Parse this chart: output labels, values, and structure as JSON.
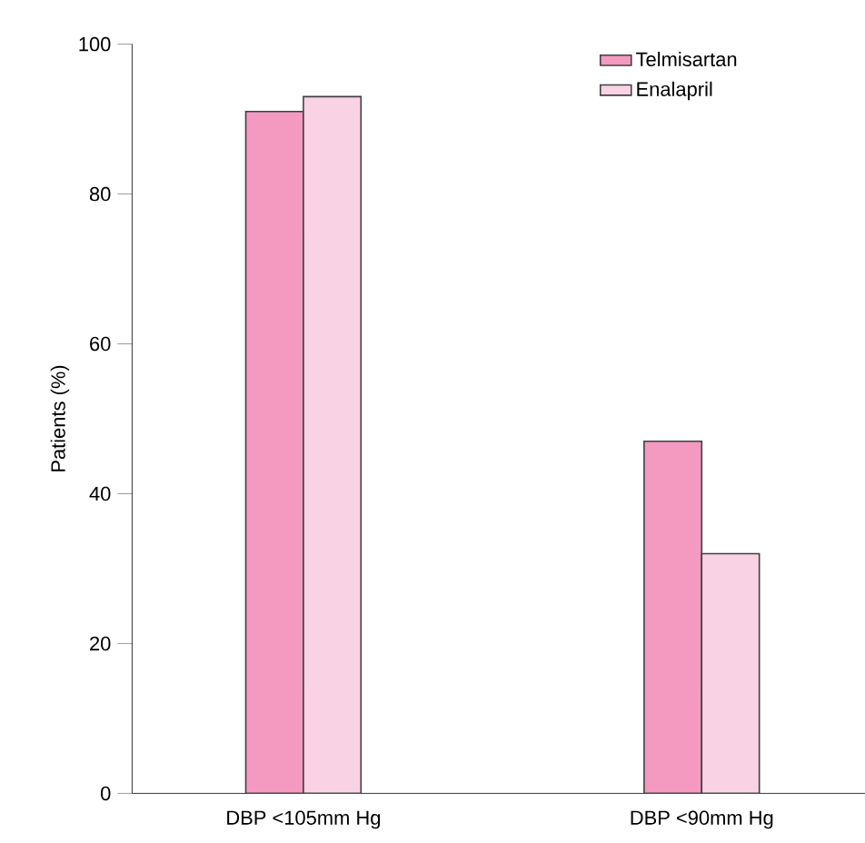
{
  "chart_data": {
    "type": "bar",
    "ylabel": "Patients (%)",
    "categories": [
      "DBP <105mm Hg",
      "DBP <90mm Hg"
    ],
    "series": [
      {
        "name": "Telmisartan",
        "color": "#f49ac1",
        "values": [
          91,
          47
        ]
      },
      {
        "name": "Enalapril",
        "color": "#f9d3e4",
        "values": [
          93,
          32
        ]
      }
    ],
    "ylim": [
      0,
      100
    ],
    "yticks": [
      0,
      20,
      40,
      60,
      80,
      100
    ],
    "legend": "top right"
  }
}
